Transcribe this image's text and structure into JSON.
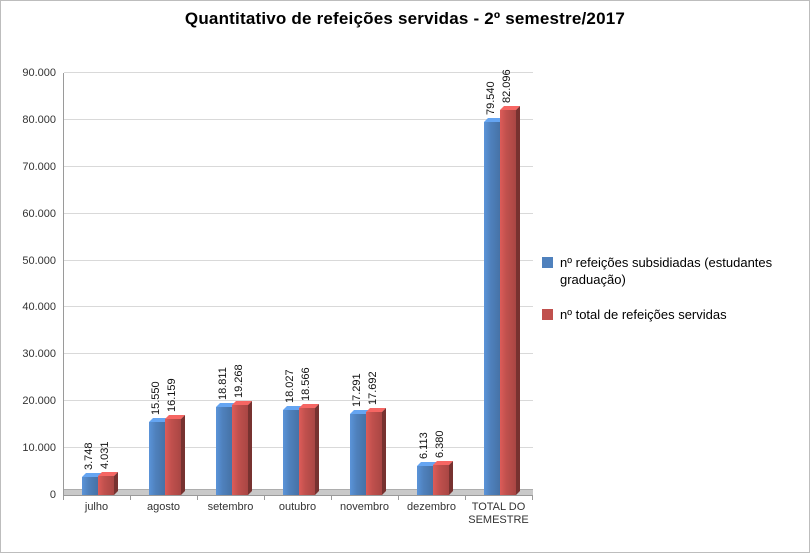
{
  "chart_data": {
    "type": "bar",
    "title": "Quantitativo de refeições servidas - 2º semestre/2017",
    "categories": [
      "julho",
      "agosto",
      "setembro",
      "outubro",
      "novembro",
      "dezembro",
      "TOTAL DO SEMESTRE"
    ],
    "series": [
      {
        "name": "nº refeições subsidiadas (estudantes graduação)",
        "color": "#4F81BD",
        "values": [
          3748,
          15550,
          18811,
          18027,
          17291,
          6113,
          79540
        ],
        "labels": [
          "3.748",
          "15.550",
          "18.811",
          "18.027",
          "17.291",
          "6.113",
          "79.540"
        ]
      },
      {
        "name": "nº total de refeições servidas",
        "color": "#C0504D",
        "values": [
          4031,
          16159,
          19268,
          18566,
          17692,
          6380,
          82096
        ],
        "labels": [
          "4.031",
          "16.159",
          "19.268",
          "18.566",
          "17.692",
          "6.380",
          "82.096"
        ]
      }
    ],
    "ylim": [
      0,
      90000
    ],
    "ytick_step": 10000,
    "ytick_labels": [
      "0",
      "10.000",
      "20.000",
      "30.000",
      "40.000",
      "50.000",
      "60.000",
      "70.000",
      "80.000",
      "90.000"
    ],
    "grid": true,
    "legend_position": "right"
  }
}
